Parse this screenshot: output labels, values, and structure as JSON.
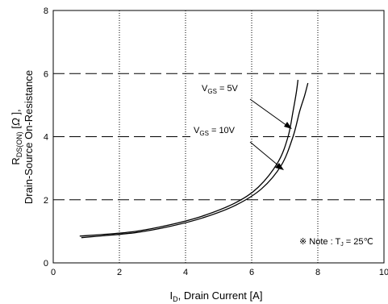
{
  "chart_data": {
    "type": "line",
    "xlabel": {
      "main": "I",
      "sub": "D",
      "rest": ", Drain Current [A]"
    },
    "ylabel": {
      "line1": {
        "main": "R",
        "sub": "DS(ON)",
        "rest": " [Ω ],",
        "bracket_open": " [",
        "unit": "Ω",
        "bracket_close": " ],"
      },
      "line2": "Drain-Source On-Resistance"
    },
    "xlim": [
      0,
      10
    ],
    "ylim": [
      0,
      8
    ],
    "xticks": [
      "0",
      "2",
      "4",
      "6",
      "8",
      "10"
    ],
    "yticks": [
      "0",
      "2",
      "4",
      "6",
      "8"
    ],
    "grid": {
      "vertical": "dotted",
      "horizontal": "dashed"
    },
    "series": [
      {
        "name": "VGS = 5V",
        "x": [
          0.8,
          1.5,
          2.5,
          3.5,
          4.5,
          5.5,
          6.2,
          6.8,
          7.1,
          7.25,
          7.35,
          7.4
        ],
        "y": [
          0.85,
          0.9,
          1.0,
          1.2,
          1.48,
          1.9,
          2.4,
          3.2,
          4.0,
          4.8,
          5.4,
          5.8
        ]
      },
      {
        "name": "VGS = 10V",
        "x": [
          0.85,
          1.5,
          2.5,
          3.5,
          4.5,
          5.5,
          6.3,
          6.9,
          7.25,
          7.45,
          7.6,
          7.7
        ],
        "y": [
          0.8,
          0.86,
          0.96,
          1.15,
          1.42,
          1.82,
          2.35,
          3.1,
          4.0,
          4.8,
          5.3,
          5.7
        ]
      }
    ],
    "annotations": {
      "vgs5": {
        "main": "V",
        "sub": "GS",
        "rest": " = 5V"
      },
      "vgs10": {
        "main": "V",
        "sub": "GS",
        "rest": " = 10V"
      },
      "note": {
        "prefix": "※ Note : T",
        "sub": "J",
        "rest": " = 25℃"
      }
    }
  }
}
